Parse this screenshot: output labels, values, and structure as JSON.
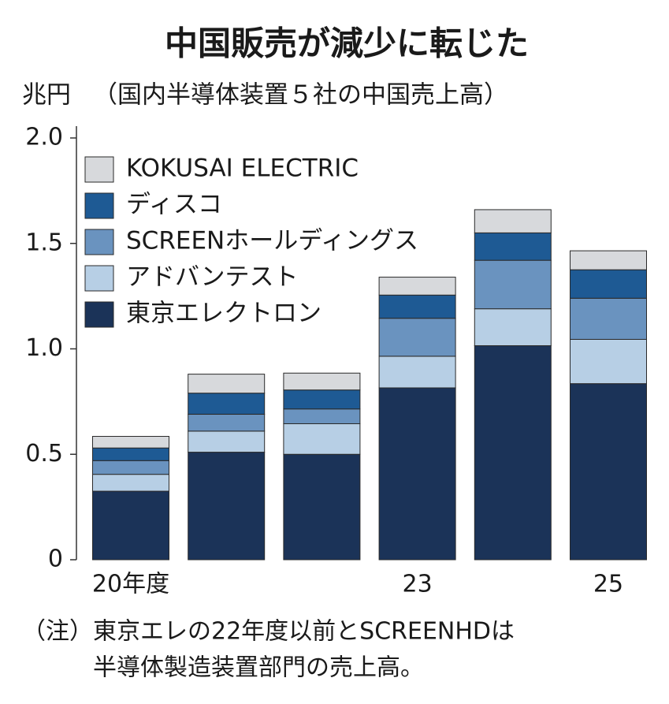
{
  "chart_data": {
    "type": "bar",
    "stacked": true,
    "title": "中国販売が減少に転じた",
    "ylabel": "兆円",
    "subtitle": "（国内半導体装置５社の中国売上高）",
    "categories": [
      "20年度",
      null,
      null,
      "23",
      null,
      "25"
    ],
    "series": [
      {
        "name": "東京エレクトロン",
        "color": "#1b3358",
        "values": [
          0.325,
          0.51,
          0.5,
          0.815,
          1.015,
          0.835
        ]
      },
      {
        "name": "アドバンテスト",
        "color": "#b7cfe5",
        "values": [
          0.08,
          0.1,
          0.145,
          0.15,
          0.175,
          0.21
        ]
      },
      {
        "name": "SCREENホールディングス",
        "color": "#6a93bf",
        "values": [
          0.065,
          0.08,
          0.07,
          0.18,
          0.23,
          0.195
        ]
      },
      {
        "name": "ディスコ",
        "color": "#1e5a94",
        "values": [
          0.06,
          0.1,
          0.09,
          0.11,
          0.13,
          0.135
        ]
      },
      {
        "name": "KOKUSAI ELECTRIC",
        "color": "#d7d9dc",
        "values": [
          0.055,
          0.09,
          0.08,
          0.085,
          0.11,
          0.09
        ]
      }
    ],
    "ylim": [
      0,
      2
    ],
    "yticks": [
      0,
      {
        "value": 0.5,
        "label": "0.5"
      },
      {
        "value": 1,
        "label": "1.0"
      },
      {
        "value": 1.5,
        "label": "1.5"
      },
      {
        "value": 2,
        "label": "2.0"
      }
    ],
    "legend": "upper-left",
    "notes": [
      "（注）東京エレの22年度以前とSCREENHDは",
      "半導体製造装置部門の売上高。"
    ]
  }
}
